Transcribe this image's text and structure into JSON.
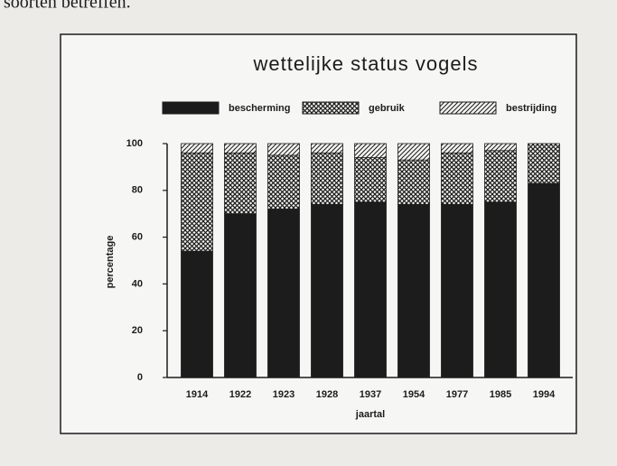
{
  "page_text": "soorten betreffen.",
  "chart_data": {
    "type": "stacked_bar",
    "title": "wettelijke status vogels",
    "x_label": "jaartal",
    "y_label": "percentage",
    "categories": [
      "1914",
      "1922",
      "1923",
      "1928",
      "1937",
      "1954",
      "1977",
      "1985",
      "1994"
    ],
    "series": [
      {
        "name": "bescherming",
        "color": "#1c1c1c",
        "pattern": "solid",
        "values": [
          54,
          70,
          72,
          74,
          75,
          74,
          74,
          75,
          83
        ]
      },
      {
        "name": "gebruik",
        "color": "#1c1c1c",
        "pattern": "crosshatch",
        "values": [
          42,
          26,
          23,
          22,
          19,
          19,
          22,
          22,
          17
        ]
      },
      {
        "name": "bestrijding",
        "color": "#1c1c1c",
        "pattern": "diagonal",
        "values": [
          4,
          4,
          5,
          4,
          6,
          7,
          4,
          3,
          0
        ]
      }
    ],
    "ylim": [
      0,
      100
    ],
    "yticks": [
      0,
      20,
      40,
      60,
      80,
      100
    ],
    "grid": false
  }
}
